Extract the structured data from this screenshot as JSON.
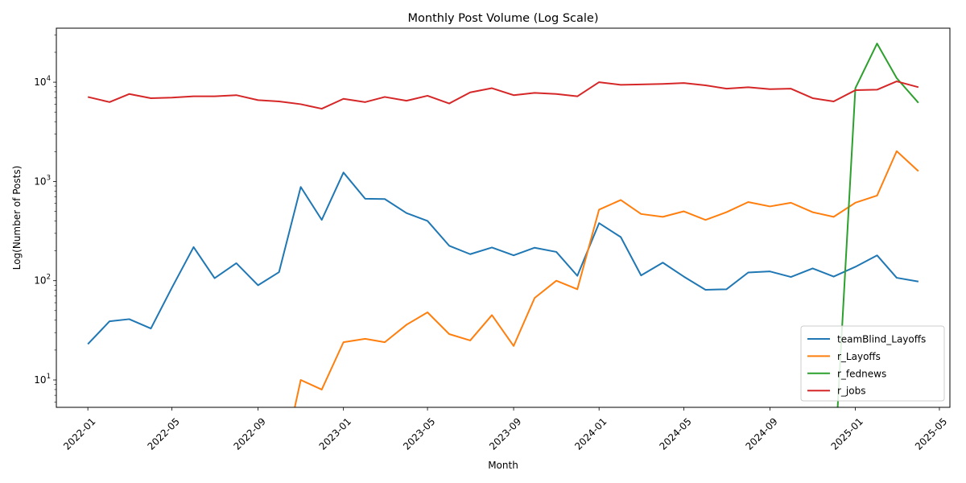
{
  "chart_data": {
    "type": "line",
    "title": "Monthly Post Volume (Log Scale)",
    "xlabel": "Month",
    "ylabel": "Log(Number of Posts)",
    "yscale": "log",
    "ylim": [
      5.3,
      35000
    ],
    "xlim": [
      "2021-11-17",
      "2025-05-16"
    ],
    "legend_position": "lower-right",
    "x_ticks": [
      "2022-01",
      "2022-05",
      "2022-09",
      "2023-01",
      "2023-05",
      "2023-09",
      "2024-01",
      "2024-05",
      "2024-09",
      "2025-01",
      "2025-05"
    ],
    "y_ticks": [
      {
        "value": 10,
        "base": "10",
        "exp": "1"
      },
      {
        "value": 100,
        "base": "10",
        "exp": "2"
      },
      {
        "value": 1000,
        "base": "10",
        "exp": "3"
      },
      {
        "value": 10000,
        "base": "10",
        "exp": "4"
      }
    ],
    "series": [
      {
        "name": "teamBlind_Layoffs",
        "color": "#1f77b4",
        "points": [
          [
            "2022-01",
            23
          ],
          [
            "2022-02",
            39
          ],
          [
            "2022-03",
            41
          ],
          [
            "2022-04",
            33
          ],
          [
            "2022-05",
            85
          ],
          [
            "2022-06",
            218
          ],
          [
            "2022-07",
            106
          ],
          [
            "2022-08",
            150
          ],
          [
            "2022-09",
            90
          ],
          [
            "2022-10",
            122
          ],
          [
            "2022-11",
            880
          ],
          [
            "2022-12",
            410
          ],
          [
            "2023-01",
            1230
          ],
          [
            "2023-02",
            670
          ],
          [
            "2023-03",
            665
          ],
          [
            "2023-04",
            480
          ],
          [
            "2023-05",
            400
          ],
          [
            "2023-06",
            225
          ],
          [
            "2023-07",
            185
          ],
          [
            "2023-08",
            216
          ],
          [
            "2023-09",
            180
          ],
          [
            "2023-10",
            215
          ],
          [
            "2023-11",
            195
          ],
          [
            "2023-12",
            112
          ],
          [
            "2024-01",
            380
          ],
          [
            "2024-02",
            275
          ],
          [
            "2024-03",
            113
          ],
          [
            "2024-04",
            152
          ],
          [
            "2024-05",
            110
          ],
          [
            "2024-06",
            81
          ],
          [
            "2024-07",
            82
          ],
          [
            "2024-08",
            121
          ],
          [
            "2024-09",
            124
          ],
          [
            "2024-10",
            109
          ],
          [
            "2024-11",
            133
          ],
          [
            "2024-12",
            110
          ],
          [
            "2025-01",
            138
          ],
          [
            "2025-02",
            180
          ],
          [
            "2025-03",
            107
          ],
          [
            "2025-04",
            98
          ]
        ]
      },
      {
        "name": "r_Layoffs",
        "color": "#ff7f0e",
        "points": [
          [
            "2022-10",
            1
          ],
          [
            "2022-11",
            10
          ],
          [
            "2022-12",
            8
          ],
          [
            "2023-01",
            24
          ],
          [
            "2023-02",
            26
          ],
          [
            "2023-03",
            24
          ],
          [
            "2023-04",
            36
          ],
          [
            "2023-05",
            48
          ],
          [
            "2023-06",
            29
          ],
          [
            "2023-07",
            25
          ],
          [
            "2023-08",
            45
          ],
          [
            "2023-09",
            22
          ],
          [
            "2023-10",
            67
          ],
          [
            "2023-11",
            100
          ],
          [
            "2023-12",
            82
          ],
          [
            "2024-01",
            520
          ],
          [
            "2024-02",
            650
          ],
          [
            "2024-03",
            470
          ],
          [
            "2024-04",
            440
          ],
          [
            "2024-05",
            500
          ],
          [
            "2024-06",
            410
          ],
          [
            "2024-07",
            490
          ],
          [
            "2024-08",
            620
          ],
          [
            "2024-09",
            560
          ],
          [
            "2024-10",
            610
          ],
          [
            "2024-11",
            490
          ],
          [
            "2024-12",
            440
          ],
          [
            "2025-01",
            610
          ],
          [
            "2025-02",
            720
          ],
          [
            "2025-03",
            2020
          ],
          [
            "2025-04",
            1270
          ]
        ]
      },
      {
        "name": "r_fednews",
        "color": "#2ca02c",
        "points": [
          [
            "2024-12",
            1
          ],
          [
            "2025-01",
            8700
          ],
          [
            "2025-02",
            24500
          ],
          [
            "2025-03",
            11000
          ],
          [
            "2025-04",
            6200
          ]
        ]
      },
      {
        "name": "r_jobs",
        "color": "#d62728",
        "points": [
          [
            "2022-01",
            7100
          ],
          [
            "2022-02",
            6300
          ],
          [
            "2022-03",
            7600
          ],
          [
            "2022-04",
            6900
          ],
          [
            "2022-05",
            7000
          ],
          [
            "2022-06",
            7200
          ],
          [
            "2022-07",
            7200
          ],
          [
            "2022-08",
            7400
          ],
          [
            "2022-09",
            6600
          ],
          [
            "2022-10",
            6400
          ],
          [
            "2022-11",
            6000
          ],
          [
            "2022-12",
            5400
          ],
          [
            "2023-01",
            6800
          ],
          [
            "2023-02",
            6300
          ],
          [
            "2023-03",
            7100
          ],
          [
            "2023-04",
            6500
          ],
          [
            "2023-05",
            7300
          ],
          [
            "2023-06",
            6100
          ],
          [
            "2023-07",
            7900
          ],
          [
            "2023-08",
            8700
          ],
          [
            "2023-09",
            7400
          ],
          [
            "2023-10",
            7800
          ],
          [
            "2023-11",
            7600
          ],
          [
            "2023-12",
            7200
          ],
          [
            "2024-01",
            10000
          ],
          [
            "2024-02",
            9400
          ],
          [
            "2024-03",
            9500
          ],
          [
            "2024-04",
            9600
          ],
          [
            "2024-05",
            9800
          ],
          [
            "2024-06",
            9300
          ],
          [
            "2024-07",
            8600
          ],
          [
            "2024-08",
            8900
          ],
          [
            "2024-09",
            8500
          ],
          [
            "2024-10",
            8600
          ],
          [
            "2024-11",
            6900
          ],
          [
            "2024-12",
            6400
          ],
          [
            "2025-01",
            8300
          ],
          [
            "2025-02",
            8400
          ],
          [
            "2025-03",
            10200
          ],
          [
            "2025-04",
            8900
          ]
        ]
      }
    ]
  }
}
